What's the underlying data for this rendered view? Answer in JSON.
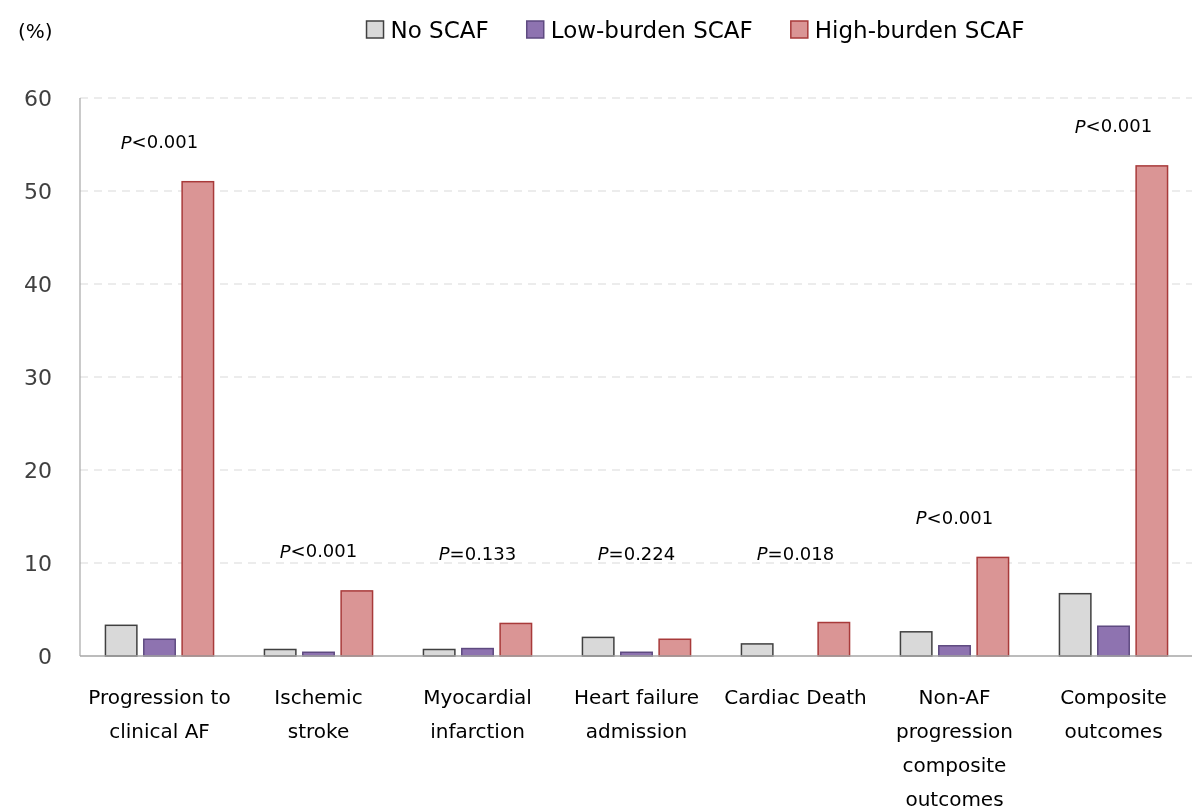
{
  "chart_data": {
    "type": "bar",
    "ylabel": "(%)",
    "categories": [
      "Progression to clinical AF",
      "Ischemic stroke",
      "Myocardial infarction",
      "Heart failure admission",
      "Cardiac Death",
      "Non-AF progression composite outcomes",
      "Composite outcomes"
    ],
    "series": [
      {
        "name": "No SCAF",
        "color": "#d9d9d9",
        "values": [
          3.3,
          0.7,
          0.7,
          2.0,
          1.3,
          2.6,
          6.7
        ]
      },
      {
        "name": "Low-burden SCAF",
        "color": "#8e73b0",
        "values": [
          1.8,
          0.4,
          0.8,
          0.4,
          0,
          1.1,
          3.2
        ]
      },
      {
        "name": "High-burden SCAF",
        "color": "#da9595",
        "values": [
          51.0,
          7.0,
          3.5,
          1.8,
          3.6,
          10.6,
          52.7
        ]
      }
    ],
    "ylim": [
      0,
      60
    ],
    "yticks": [
      0,
      10,
      20,
      30,
      40,
      50,
      60
    ],
    "grid": "y",
    "legend": "top",
    "annotations": [
      "P<0.001",
      "P<0.001",
      "P=0.133",
      "P=0.224",
      "P=0.018",
      "P<0.001",
      "P<0.001"
    ]
  }
}
